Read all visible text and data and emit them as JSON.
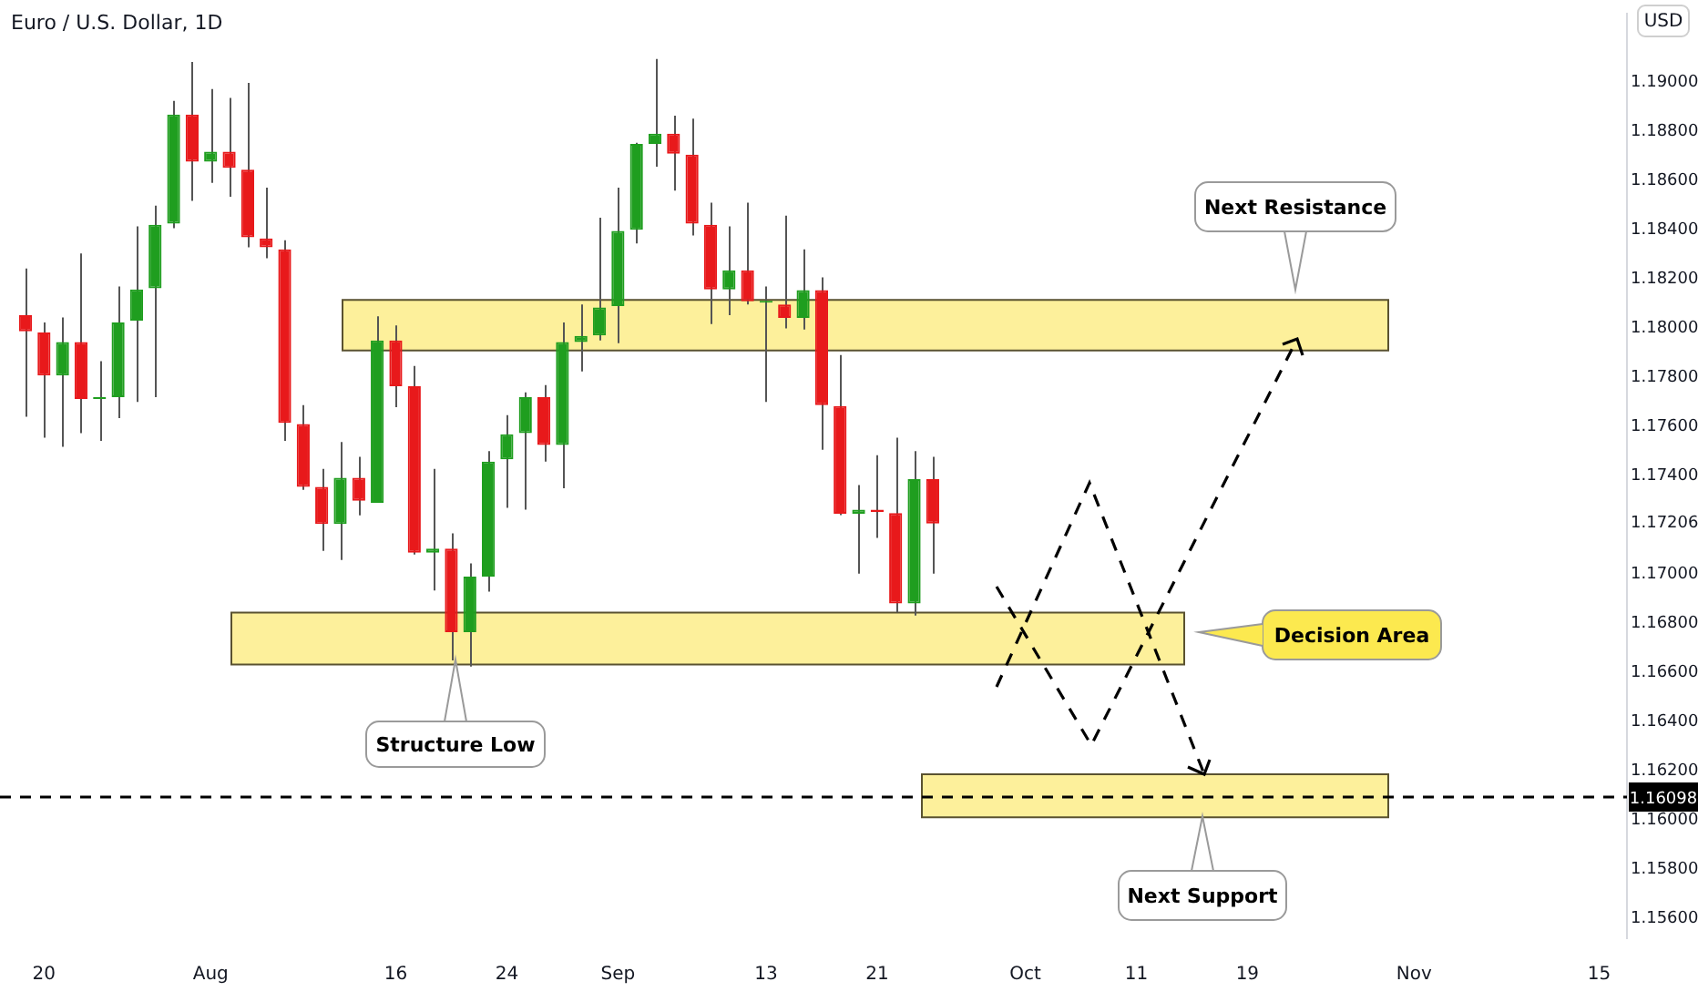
{
  "chart_data": {
    "type": "candlestick",
    "title": "Euro / U.S. Dollar, 1D",
    "ylabel": "USD",
    "categories": [
      null,
      "20",
      null,
      null,
      null,
      null,
      null,
      null,
      null,
      null,
      "Aug",
      null,
      null,
      null,
      null,
      null,
      null,
      null,
      null,
      null,
      "16",
      null,
      null,
      null,
      null,
      null,
      "24",
      null,
      null,
      null,
      null,
      null,
      "Sep",
      null,
      null,
      null,
      null,
      null,
      null,
      null,
      "13",
      null,
      null,
      null,
      null,
      null,
      "21",
      null,
      null,
      null,
      null,
      null,
      null,
      null,
      "Oct",
      null,
      null,
      null,
      null,
      null,
      "11",
      null,
      null,
      null,
      null,
      null,
      "19",
      null,
      null,
      null,
      null,
      null,
      null,
      null,
      null,
      "Nov",
      null,
      null,
      null,
      null,
      null,
      null,
      null,
      null,
      null,
      "15",
      null
    ],
    "ohlc": [
      [
        1.18053,
        1.18243,
        1.1764,
        1.17988
      ],
      [
        1.17983,
        1.18024,
        1.17555,
        1.17808
      ],
      [
        1.17808,
        1.18044,
        1.17518,
        1.17944
      ],
      [
        1.17944,
        1.18304,
        1.17574,
        1.17713
      ],
      [
        1.17713,
        1.17866,
        1.17542,
        1.17716
      ],
      [
        1.1772,
        1.1817,
        1.17635,
        1.18024
      ],
      [
        1.18031,
        1.18414,
        1.17701,
        1.18158
      ],
      [
        1.18163,
        1.18499,
        1.1772,
        1.18421
      ],
      [
        1.18426,
        1.18925,
        1.18407,
        1.18869
      ],
      [
        1.18869,
        1.19083,
        1.18518,
        1.18677
      ],
      [
        1.18677,
        1.18973,
        1.18591,
        1.18718
      ],
      [
        1.18718,
        1.18937,
        1.18535,
        1.18652
      ],
      [
        1.18645,
        1.18998,
        1.18329,
        1.1837
      ],
      [
        1.18365,
        1.18572,
        1.18285,
        1.18329
      ],
      [
        1.18321,
        1.18358,
        1.17542,
        1.17615
      ],
      [
        1.17611,
        1.17688,
        1.17343,
        1.17355
      ],
      [
        1.17355,
        1.17428,
        1.17095,
        1.17204
      ],
      [
        1.17204,
        1.17538,
        1.17058,
        1.17392
      ],
      [
        1.17392,
        1.17477,
        1.17239,
        1.17299
      ],
      [
        1.1729,
        1.18049,
        1.1729,
        1.17951
      ],
      [
        1.17951,
        1.18012,
        1.17679,
        1.17764
      ],
      [
        1.17764,
        1.17847,
        1.1708,
        1.17088
      ],
      [
        1.17088,
        1.17428,
        1.16934,
        1.17104
      ],
      [
        1.17104,
        1.17166,
        1.1665,
        1.16764
      ],
      [
        1.16764,
        1.17044,
        1.16625,
        1.1699
      ],
      [
        1.1699,
        1.17501,
        1.16929,
        1.17458
      ],
      [
        1.17467,
        1.17647,
        1.1727,
        1.17569
      ],
      [
        1.17574,
        1.17739,
        1.17263,
        1.1772
      ],
      [
        1.1772,
        1.17769,
        1.17458,
        1.17526
      ],
      [
        1.17526,
        1.18024,
        1.1735,
        1.17944
      ],
      [
        1.17944,
        1.18097,
        1.17825,
        1.17969
      ],
      [
        1.17971,
        1.1845,
        1.17951,
        1.18085
      ],
      [
        1.1809,
        1.18572,
        1.17939,
        1.18396
      ],
      [
        1.18401,
        1.18754,
        1.18345,
        1.1875
      ],
      [
        1.1875,
        1.19095,
        1.18657,
        1.18791
      ],
      [
        1.18791,
        1.18864,
        1.1856,
        1.1871
      ],
      [
        1.18706,
        1.18852,
        1.18377,
        1.18426
      ],
      [
        1.18421,
        1.18511,
        1.18017,
        1.18158
      ],
      [
        1.18158,
        1.18414,
        1.18053,
        1.18236
      ],
      [
        1.18236,
        1.18511,
        1.18097,
        1.1811
      ],
      [
        1.18104,
        1.1817,
        1.17701,
        1.18107
      ],
      [
        1.18097,
        1.18458,
        1.18,
        1.18042
      ],
      [
        1.18042,
        1.18321,
        1.17995,
        1.18155
      ],
      [
        1.18155,
        1.18207,
        1.17506,
        1.17688
      ],
      [
        1.17684,
        1.17891,
        1.1724,
        1.17246
      ],
      [
        1.17246,
        1.17363,
        1.17002,
        1.17263
      ],
      [
        1.17263,
        1.17484,
        1.17148,
        1.17253
      ],
      [
        1.17249,
        1.17555,
        1.16844,
        1.16881
      ],
      [
        1.16881,
        1.17501,
        1.16832,
        1.17387
      ],
      [
        1.17387,
        1.17477,
        1.17002,
        1.17206
      ],
      null,
      null,
      null,
      null,
      null,
      null,
      null,
      null,
      null,
      null,
      null,
      null,
      null,
      null,
      null,
      null,
      null,
      null,
      null,
      null,
      null,
      null,
      null,
      null,
      null,
      null,
      null,
      null,
      null,
      null,
      null,
      null,
      null,
      null,
      null,
      null,
      null
    ],
    "colors": [
      "#e8191b",
      "#e8191b",
      "#1f9e1f",
      "#e8191b",
      "#1f9e1f",
      "#1f9e1f",
      "#1f9e1f",
      "#1f9e1f",
      "#1f9e1f",
      "#e8191b",
      "#1f9e1f",
      "#e8191b",
      "#e8191b",
      "#e8191b",
      "#e8191b",
      "#e8191b",
      "#e8191b",
      "#1f9e1f",
      "#e8191b",
      "#1f9e1f",
      "#e8191b",
      "#e8191b",
      "#1f9e1f",
      "#e8191b",
      "#1f9e1f",
      "#1f9e1f",
      "#1f9e1f",
      "#1f9e1f",
      "#e8191b",
      "#1f9e1f",
      "#1f9e1f",
      "#1f9e1f",
      "#1f9e1f",
      "#1f9e1f",
      "#1f9e1f",
      "#e8191b",
      "#e8191b",
      "#e8191b",
      "#1f9e1f",
      "#e8191b",
      "#1f9e1f",
      "#e8191b",
      "#1f9e1f",
      "#e8191b",
      "#e8191b",
      "#1f9e1f",
      "#e8191b",
      "#e8191b",
      "#1f9e1f",
      "#e8191b",
      null,
      null,
      null,
      null,
      null,
      null,
      null,
      null,
      null,
      null,
      null,
      null,
      null,
      null,
      null,
      null,
      null,
      null,
      null,
      null,
      null,
      null,
      null,
      null,
      null,
      null,
      null,
      null,
      null,
      null,
      null,
      null,
      null,
      null,
      null,
      null,
      null
    ],
    "ylim": [
      1.1552,
      1.1928
    ],
    "yticks": [
      {
        "value": 1.156,
        "label": "1.15600"
      },
      {
        "value": 1.158,
        "label": "1.15800"
      },
      {
        "value": 1.16,
        "label": "1.16000"
      },
      {
        "value": 1.162,
        "label": "1.16200"
      },
      {
        "value": 1.164,
        "label": "1.16400"
      },
      {
        "value": 1.166,
        "label": "1.16600"
      },
      {
        "value": 1.168,
        "label": "1.16800"
      },
      {
        "value": 1.17,
        "label": "1.17000"
      },
      1.17206,
      {
        "value": 1.174,
        "label": "1.17400"
      },
      {
        "value": 1.176,
        "label": "1.17600"
      },
      {
        "value": 1.178,
        "label": "1.17800"
      },
      {
        "value": 1.18,
        "label": "1.18000"
      },
      {
        "value": 1.182,
        "label": "1.18200"
      },
      {
        "value": 1.184,
        "label": "1.18400"
      },
      {
        "value": 1.186,
        "label": "1.18600"
      },
      {
        "value": 1.188,
        "label": "1.18800"
      },
      {
        "value": 1.19,
        "label": "1.19000"
      }
    ],
    "bands": [
      {
        "axis": "y",
        "from": 1.1791,
        "to": 1.18115,
        "color": "#fdf09b"
      },
      {
        "axis": "y",
        "from": 1.16633,
        "to": 1.16844,
        "label": "Decision Area",
        "color": "#fdf09b"
      },
      {
        "axis": "y",
        "from": 1.16012,
        "to": 1.16187,
        "color": "#fdf09b"
      }
    ],
    "ref_lines": [
      {
        "axis": "y",
        "value": 1.16098,
        "label": "1.16098",
        "color": "#000000",
        "line_style": "dashed"
      }
    ],
    "annotations": [
      "Next Resistance",
      "Next Support",
      "Structure Low"
    ]
  }
}
